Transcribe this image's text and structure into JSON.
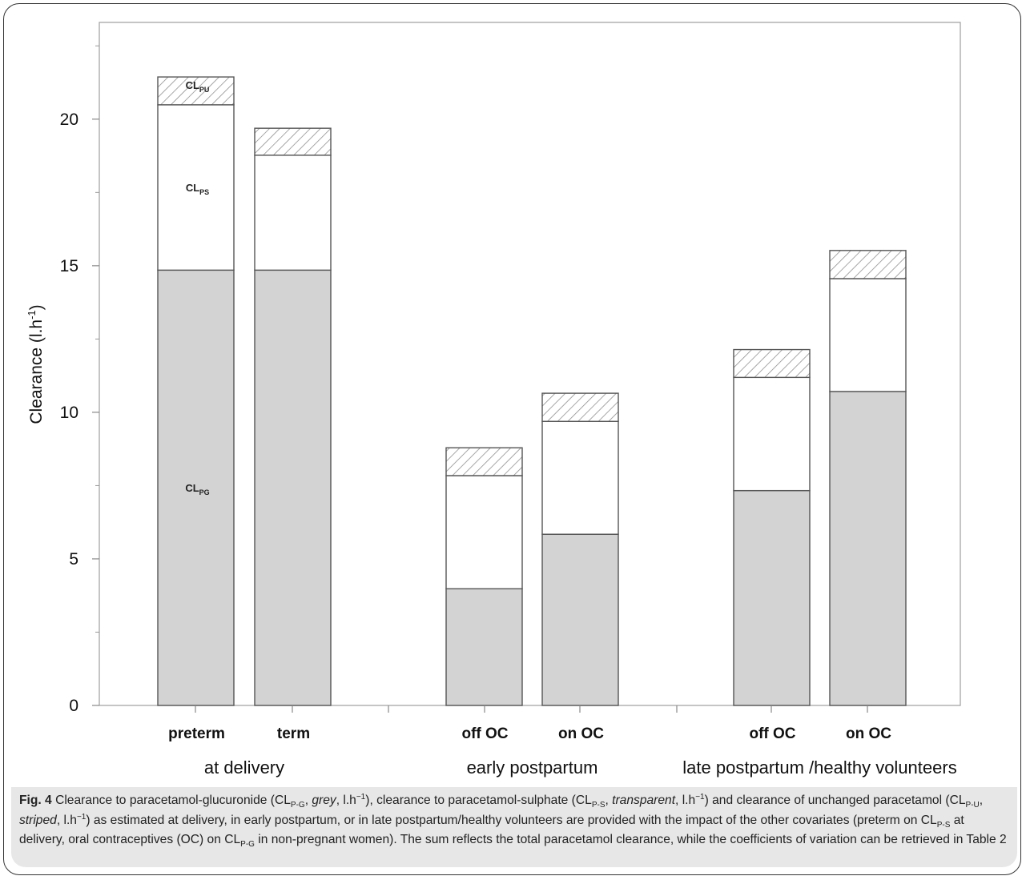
{
  "chart_data": {
    "type": "bar",
    "stacked": true,
    "ylabel": "Clearance (l.h",
    "ylabel_sup": "-1",
    "ylabel_close": ")",
    "ylim": [
      0,
      23.3
    ],
    "yticks": [
      0,
      5,
      10,
      15,
      20
    ],
    "grid": false,
    "categories": [
      "preterm",
      "term",
      "off OC",
      "on OC",
      "off OC",
      "on OC"
    ],
    "groups": [
      {
        "label": "at delivery",
        "members": [
          0,
          1
        ]
      },
      {
        "label": "early postpartum",
        "members": [
          2,
          3
        ]
      },
      {
        "label": "late postpartum /healthy volunteers",
        "members": [
          4,
          5
        ]
      }
    ],
    "series": [
      {
        "name": "CLPG",
        "fill": "#d3d3d3",
        "values": [
          14.85,
          14.85,
          3.98,
          5.84,
          7.33,
          10.71
        ]
      },
      {
        "name": "CLPS",
        "fill": "#ffffff",
        "values": [
          5.64,
          3.92,
          3.86,
          3.85,
          3.86,
          3.85
        ]
      },
      {
        "name": "CLPU",
        "fill": "hatch",
        "values": [
          0.95,
          0.92,
          0.95,
          0.96,
          0.95,
          0.96
        ]
      }
    ],
    "segment_labels": [
      {
        "bar": 0,
        "series": 0,
        "main": "CL",
        "sub": "PG"
      },
      {
        "bar": 0,
        "series": 1,
        "main": "CL",
        "sub": "PS"
      },
      {
        "bar": 0,
        "series": 2,
        "main": "CL",
        "sub": "PU"
      }
    ]
  },
  "caption": {
    "fig_label": "Fig. 4",
    "parts": [
      {
        "t": " Clearance to paracetamol-glucuronide (CL"
      },
      {
        "sub": "P-G"
      },
      {
        "t": ", "
      },
      {
        "i": "grey"
      },
      {
        "t": ", l.h"
      },
      {
        "sup": "−1"
      },
      {
        "t": "), clearance to paracetamol-sulphate (CL"
      },
      {
        "sub": "P-S"
      },
      {
        "t": ", "
      },
      {
        "i": "transparent"
      },
      {
        "t": ", l.h"
      },
      {
        "sup": "−1"
      },
      {
        "t": ") and clearance of unchanged paracetamol (CL"
      },
      {
        "sub": "P-U"
      },
      {
        "t": ", "
      },
      {
        "i": "striped"
      },
      {
        "t": ", l.h"
      },
      {
        "sup": "−1"
      },
      {
        "t": ") as estimated at delivery, in early postpartum, or in late postpartum/healthy volunteers are provided with the impact of the other covariates (preterm on CL"
      },
      {
        "sub": "P-S"
      },
      {
        "t": " at delivery, oral contraceptives (OC) on CL"
      },
      {
        "sub": "P-G"
      },
      {
        "t": " in non-pregnant women). The sum reflects the total paracetamol clearance, while the coefficients of variation can be retrieved in Table 2"
      }
    ]
  }
}
